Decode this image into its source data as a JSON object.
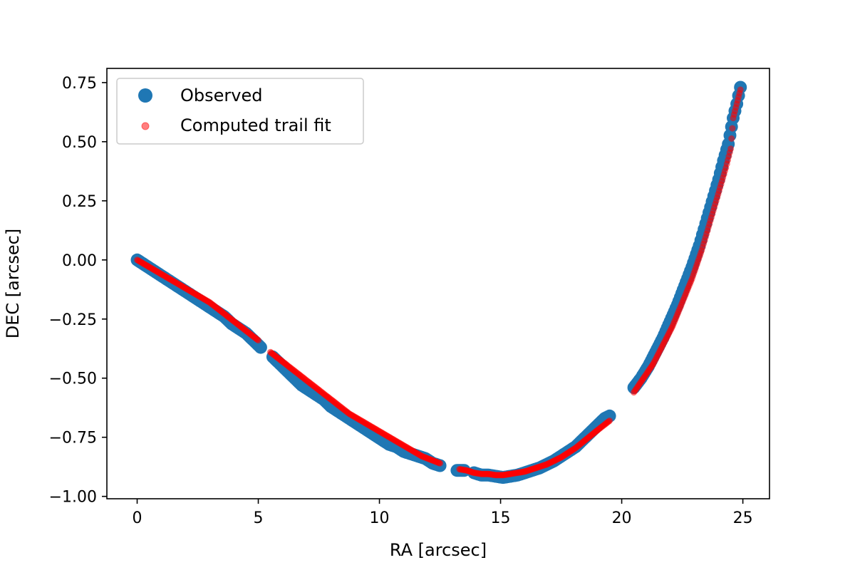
{
  "chart_data": {
    "type": "scatter",
    "xlabel": "RA [arcsec]",
    "ylabel": "DEC [arcsec]",
    "xlim": [
      -1.25,
      26.1
    ],
    "ylim": [
      -1.01,
      0.81
    ],
    "xticks": [
      0,
      5,
      10,
      15,
      20,
      25
    ],
    "xtick_labels": [
      "0",
      "5",
      "10",
      "15",
      "20",
      "25"
    ],
    "yticks": [
      -1.0,
      -0.75,
      -0.5,
      -0.25,
      0.0,
      0.25,
      0.5,
      0.75
    ],
    "ytick_labels": [
      "−1.00",
      "−0.75",
      "−0.50",
      "−0.25",
      "0.00",
      "0.25",
      "0.50",
      "0.75"
    ],
    "grid": false,
    "legend_position": "upper left",
    "series": [
      {
        "name": "Observed",
        "color": "#1f77b4",
        "x": [
          0.0,
          0.3,
          0.6,
          0.9,
          1.2,
          1.5,
          1.8,
          2.1,
          2.4,
          2.7,
          3.0,
          3.3,
          3.6,
          3.9,
          4.2,
          4.5,
          4.8,
          5.1,
          5.6,
          5.9,
          6.2,
          6.5,
          6.8,
          7.1,
          7.4,
          7.7,
          8.0,
          8.3,
          8.6,
          8.9,
          9.2,
          9.5,
          9.8,
          10.1,
          10.4,
          10.7,
          11.0,
          11.3,
          11.6,
          11.9,
          12.2,
          12.5,
          13.2,
          13.5,
          13.9,
          14.2,
          14.5,
          14.8,
          15.1,
          15.4,
          15.7,
          16.0,
          16.3,
          16.6,
          16.9,
          17.2,
          17.5,
          17.8,
          18.1,
          18.4,
          18.7,
          19.0,
          19.3,
          19.5,
          20.5,
          20.8,
          21.1,
          21.4,
          21.7,
          22.0,
          22.3,
          22.6,
          22.9,
          23.2,
          23.4,
          23.6,
          23.8,
          24.0,
          24.2,
          24.4,
          24.6,
          24.75,
          24.9
        ],
        "y": [
          0.0,
          -0.02,
          -0.04,
          -0.06,
          -0.08,
          -0.1,
          -0.12,
          -0.14,
          -0.16,
          -0.18,
          -0.2,
          -0.22,
          -0.24,
          -0.27,
          -0.29,
          -0.31,
          -0.34,
          -0.37,
          -0.41,
          -0.44,
          -0.47,
          -0.5,
          -0.53,
          -0.55,
          -0.57,
          -0.59,
          -0.62,
          -0.64,
          -0.66,
          -0.68,
          -0.7,
          -0.72,
          -0.74,
          -0.76,
          -0.78,
          -0.79,
          -0.81,
          -0.82,
          -0.83,
          -0.84,
          -0.86,
          -0.87,
          -0.89,
          -0.89,
          -0.9,
          -0.91,
          -0.91,
          -0.915,
          -0.92,
          -0.915,
          -0.91,
          -0.9,
          -0.89,
          -0.88,
          -0.865,
          -0.85,
          -0.83,
          -0.81,
          -0.79,
          -0.76,
          -0.73,
          -0.7,
          -0.67,
          -0.66,
          -0.54,
          -0.5,
          -0.45,
          -0.39,
          -0.33,
          -0.26,
          -0.19,
          -0.11,
          -0.03,
          0.06,
          0.13,
          0.2,
          0.27,
          0.34,
          0.42,
          0.49,
          0.6,
          0.66,
          0.73
        ]
      },
      {
        "name": "Computed trail fit",
        "color": "#ff0000",
        "x": [
          0.0,
          0.25,
          0.5,
          0.75,
          1.0,
          1.25,
          1.5,
          1.75,
          2.0,
          2.25,
          2.5,
          2.75,
          3.0,
          3.25,
          3.5,
          3.75,
          4.0,
          4.25,
          4.5,
          4.75,
          5.0,
          5.5,
          5.75,
          6.0,
          6.25,
          6.5,
          6.75,
          7.0,
          7.25,
          7.5,
          7.75,
          8.0,
          8.25,
          8.5,
          8.75,
          9.0,
          9.25,
          9.5,
          9.75,
          10.0,
          10.25,
          10.5,
          10.75,
          11.0,
          11.25,
          11.5,
          11.75,
          12.0,
          12.25,
          12.5,
          13.3,
          13.6,
          13.9,
          14.2,
          14.5,
          14.8,
          15.1,
          15.4,
          15.7,
          16.0,
          16.3,
          16.6,
          16.9,
          17.2,
          17.5,
          17.8,
          18.1,
          18.4,
          18.7,
          19.0,
          19.25,
          19.5,
          20.5,
          20.7,
          20.9,
          21.1,
          21.3,
          21.5,
          21.7,
          21.9,
          22.1,
          22.3,
          22.5,
          22.7,
          22.9,
          23.1,
          23.3,
          23.5,
          23.7,
          23.9,
          24.1,
          24.3,
          24.5,
          24.6,
          24.75,
          24.9
        ],
        "y": [
          0.0,
          -0.015,
          -0.03,
          -0.045,
          -0.06,
          -0.075,
          -0.09,
          -0.105,
          -0.12,
          -0.135,
          -0.15,
          -0.165,
          -0.18,
          -0.2,
          -0.22,
          -0.24,
          -0.26,
          -0.28,
          -0.3,
          -0.32,
          -0.34,
          -0.39,
          -0.41,
          -0.43,
          -0.45,
          -0.47,
          -0.49,
          -0.51,
          -0.53,
          -0.55,
          -0.57,
          -0.59,
          -0.61,
          -0.63,
          -0.65,
          -0.665,
          -0.68,
          -0.695,
          -0.71,
          -0.725,
          -0.74,
          -0.755,
          -0.77,
          -0.785,
          -0.8,
          -0.815,
          -0.83,
          -0.84,
          -0.85,
          -0.86,
          -0.885,
          -0.89,
          -0.9,
          -0.905,
          -0.905,
          -0.91,
          -0.91,
          -0.905,
          -0.9,
          -0.895,
          -0.885,
          -0.875,
          -0.865,
          -0.85,
          -0.835,
          -0.815,
          -0.795,
          -0.77,
          -0.745,
          -0.72,
          -0.7,
          -0.68,
          -0.56,
          -0.53,
          -0.5,
          -0.47,
          -0.44,
          -0.4,
          -0.36,
          -0.32,
          -0.28,
          -0.23,
          -0.18,
          -0.13,
          -0.08,
          -0.02,
          0.04,
          0.11,
          0.18,
          0.25,
          0.32,
          0.39,
          0.47,
          0.6,
          0.66,
          0.72
        ]
      }
    ]
  }
}
